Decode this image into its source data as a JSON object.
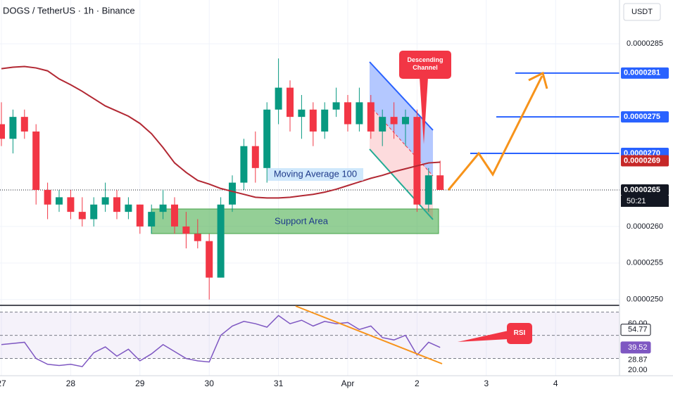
{
  "header": {
    "title": "DOGS / TetherUS · 1h · Binance",
    "currency": "USDT"
  },
  "chart_data": {
    "type": "candlestick",
    "x": [
      0,
      0.1667,
      0.3333,
      0.5,
      0.6667,
      0.8333,
      1,
      1.1667,
      1.3333,
      1.5,
      1.6667,
      1.8333,
      2,
      2.1667,
      2.3333,
      2.5,
      2.6667,
      2.8333,
      3,
      3.1667,
      3.3333,
      3.5,
      3.6667,
      3.8333,
      4,
      4.1667,
      4.3333,
      4.5,
      4.6667,
      4.8333,
      5,
      5.1667,
      5.3333,
      5.5,
      5.6667,
      5.8333,
      6,
      6.1667,
      6.3333
    ],
    "open": [
      2.74e-05,
      2.72e-05,
      2.75e-05,
      2.73e-05,
      2.65e-05,
      2.63e-05,
      2.64e-05,
      2.62e-05,
      2.61e-05,
      2.63e-05,
      2.64e-05,
      2.62e-05,
      2.63e-05,
      2.6e-05,
      2.62e-05,
      2.63e-05,
      2.6e-05,
      2.59e-05,
      2.58e-05,
      2.53e-05,
      2.63e-05,
      2.66e-05,
      2.71e-05,
      2.68e-05,
      2.76e-05,
      2.79e-05,
      2.75e-05,
      2.76e-05,
      2.73e-05,
      2.76e-05,
      2.77e-05,
      2.74e-05,
      2.77e-05,
      2.73e-05,
      2.75e-05,
      2.74e-05,
      2.75e-05,
      2.63e-05,
      2.67e-05
    ],
    "high": [
      2.77e-05,
      2.76e-05,
      2.76e-05,
      2.74e-05,
      2.66e-05,
      2.65e-05,
      2.65e-05,
      2.64e-05,
      2.64e-05,
      2.66e-05,
      2.65e-05,
      2.64e-05,
      2.63e-05,
      2.63e-05,
      2.65e-05,
      2.64e-05,
      2.62e-05,
      2.61e-05,
      2.59e-05,
      2.64e-05,
      2.67e-05,
      2.72e-05,
      2.73e-05,
      2.77e-05,
      2.83e-05,
      2.8e-05,
      2.78e-05,
      2.77e-05,
      2.77e-05,
      2.79e-05,
      2.78e-05,
      2.79e-05,
      2.78e-05,
      2.76e-05,
      2.77e-05,
      2.76e-05,
      2.76e-05,
      2.68e-05,
      2.69e-05
    ],
    "low": [
      2.71e-05,
      2.7e-05,
      2.72e-05,
      2.63e-05,
      2.61e-05,
      2.62e-05,
      2.61e-05,
      2.6e-05,
      2.6e-05,
      2.62e-05,
      2.61e-05,
      2.61e-05,
      2.59e-05,
      2.59e-05,
      2.61e-05,
      2.59e-05,
      2.57e-05,
      2.57e-05,
      2.5e-05,
      2.53e-05,
      2.62e-05,
      2.65e-05,
      2.66e-05,
      2.66e-05,
      2.74e-05,
      2.73e-05,
      2.72e-05,
      2.71e-05,
      2.72e-05,
      2.75e-05,
      2.73e-05,
      2.73e-05,
      2.72e-05,
      2.71e-05,
      2.72e-05,
      2.71e-05,
      2.62e-05,
      2.62e-05,
      2.65e-05
    ],
    "close": [
      2.72e-05,
      2.75e-05,
      2.73e-05,
      2.65e-05,
      2.63e-05,
      2.64e-05,
      2.62e-05,
      2.61e-05,
      2.63e-05,
      2.64e-05,
      2.62e-05,
      2.63e-05,
      2.6e-05,
      2.62e-05,
      2.63e-05,
      2.6e-05,
      2.59e-05,
      2.58e-05,
      2.53e-05,
      2.63e-05,
      2.66e-05,
      2.71e-05,
      2.68e-05,
      2.76e-05,
      2.79e-05,
      2.75e-05,
      2.76e-05,
      2.73e-05,
      2.76e-05,
      2.77e-05,
      2.74e-05,
      2.77e-05,
      2.73e-05,
      2.75e-05,
      2.74e-05,
      2.75e-05,
      2.63e-05,
      2.67e-05,
      2.65e-05
    ],
    "up_color": "#089981",
    "down_color": "#f23645",
    "ma": {
      "name": "Moving Average 100",
      "color": "#b22833",
      "values": [
        2.816e-05,
        2.818e-05,
        2.819e-05,
        2.817e-05,
        2.813e-05,
        2.802e-05,
        2.794e-05,
        2.785e-05,
        2.775e-05,
        2.765e-05,
        2.758e-05,
        2.751e-05,
        2.741e-05,
        2.727e-05,
        2.708e-05,
        2.687e-05,
        2.674e-05,
        2.663e-05,
        2.658e-05,
        2.652e-05,
        2.648e-05,
        2.644e-05,
        2.64e-05,
        2.639e-05,
        2.639e-05,
        2.64e-05,
        2.642e-05,
        2.644e-05,
        2.647e-05,
        2.651e-05,
        2.656e-05,
        2.661e-05,
        2.666e-05,
        2.67e-05,
        2.675e-05,
        2.679e-05,
        2.683e-05,
        2.687e-05,
        2.688e-05
      ]
    },
    "ylim": [
      2.493e-05,
      2.91e-05
    ],
    "yticks": [
      {
        "value": 2.85e-05,
        "label": "0.0000285"
      },
      {
        "value": 2.6e-05,
        "label": "0.0000260"
      },
      {
        "value": 2.55e-05,
        "label": "0.0000255"
      },
      {
        "value": 2.5e-05,
        "label": "0.0000250"
      }
    ],
    "xlim": [
      0,
      8.943
    ],
    "xticks": [
      {
        "value": 0,
        "label": "27"
      },
      {
        "value": 1,
        "label": "28"
      },
      {
        "value": 2,
        "label": "29"
      },
      {
        "value": 3,
        "label": "30"
      },
      {
        "value": 4,
        "label": "31"
      },
      {
        "value": 5,
        "label": "Apr"
      },
      {
        "value": 6,
        "label": "2"
      },
      {
        "value": 7,
        "label": "3"
      },
      {
        "value": 8,
        "label": "4"
      }
    ],
    "grid": true,
    "price_labels": [
      {
        "value": 2.81e-05,
        "label": "0.0000281",
        "color": "#2962ff",
        "line": true
      },
      {
        "value": 2.75e-05,
        "label": "0.0000275",
        "color": "#2962ff",
        "line": true
      },
      {
        "value": 2.7e-05,
        "label": "0.0000270",
        "color": "#2962ff",
        "line": true
      },
      {
        "value": 2.69e-05,
        "label": "0.0000269",
        "color": "#c62828",
        "line": false
      },
      {
        "value": 2.65e-05,
        "label": "0.0000265",
        "color": "#131722",
        "line": false
      }
    ],
    "countdown": "50:21",
    "annotations": {
      "channel": "Descending Channel",
      "support": "Support Area",
      "rsi": "RSI"
    },
    "rsi": {
      "color": "#7e57c2",
      "values": [
        42,
        43,
        44,
        30,
        25,
        24,
        25,
        23,
        35,
        40,
        32,
        38,
        28,
        34,
        42,
        36,
        30,
        28,
        27,
        50,
        58,
        62,
        60,
        57,
        67,
        60,
        63,
        58,
        62,
        60,
        61,
        55,
        58,
        48,
        46,
        50,
        33,
        44,
        39.52
      ],
      "ylim": [
        17.6,
        75.2
      ],
      "levels": [
        70,
        50,
        30
      ],
      "yticks": [
        {
          "value": 60,
          "label": "60.00"
        },
        {
          "value": 20,
          "label": "20.00"
        }
      ],
      "markers": [
        {
          "value": 54.77,
          "label": "54.77",
          "style": "box"
        },
        {
          "value": 39.52,
          "label": "39.52",
          "style": "fill"
        },
        {
          "value": 28.87,
          "label": "28.87",
          "style": "plain"
        }
      ]
    }
  }
}
